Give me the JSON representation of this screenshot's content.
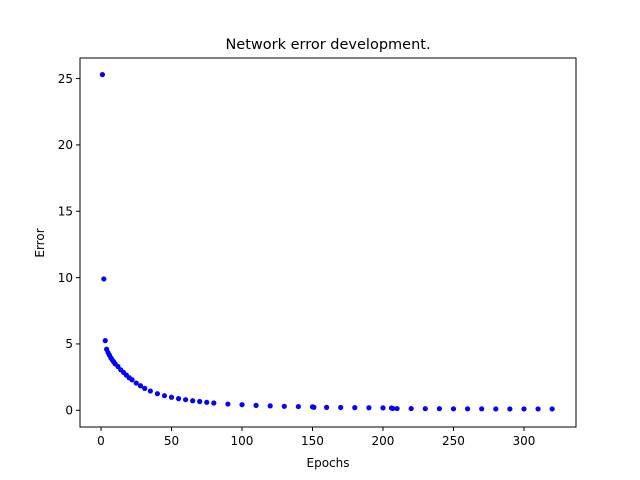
{
  "chart_data": {
    "type": "scatter",
    "title": "Network error development.",
    "xlabel": "Epochs",
    "ylabel": "Error",
    "xlim": [
      -14.9,
      336.9
    ],
    "ylim": [
      -1.26,
      26.55
    ],
    "xticks": [
      0,
      50,
      100,
      150,
      200,
      250,
      300
    ],
    "yticks": [
      0,
      5,
      10,
      15,
      20,
      25
    ],
    "grid": false,
    "legend": "none",
    "marker_color": "#0000ff",
    "series": [
      {
        "x": [
          1,
          2,
          3,
          4,
          5,
          6,
          7,
          8,
          9,
          10,
          12,
          14,
          16,
          18,
          20,
          22,
          25,
          28,
          31,
          35,
          40,
          45,
          50,
          55,
          60,
          65,
          70,
          75,
          80,
          90,
          100,
          110,
          120,
          130,
          140,
          150,
          151,
          160,
          170,
          180,
          190,
          200,
          206,
          207,
          210,
          220,
          230,
          240,
          250,
          260,
          270,
          280,
          290,
          300,
          310,
          320
        ],
        "y": [
          25.3,
          9.9,
          5.25,
          4.6,
          4.35,
          4.15,
          3.95,
          3.8,
          3.65,
          3.5,
          3.3,
          3.05,
          2.85,
          2.65,
          2.45,
          2.3,
          2.05,
          1.85,
          1.65,
          1.45,
          1.25,
          1.1,
          0.98,
          0.88,
          0.8,
          0.72,
          0.66,
          0.6,
          0.55,
          0.47,
          0.42,
          0.37,
          0.33,
          0.3,
          0.28,
          0.26,
          0.23,
          0.22,
          0.21,
          0.2,
          0.19,
          0.18,
          0.17,
          0.14,
          0.13,
          0.13,
          0.12,
          0.12,
          0.11,
          0.11,
          0.11,
          0.1,
          0.1,
          0.1,
          0.1,
          0.1
        ]
      }
    ]
  }
}
